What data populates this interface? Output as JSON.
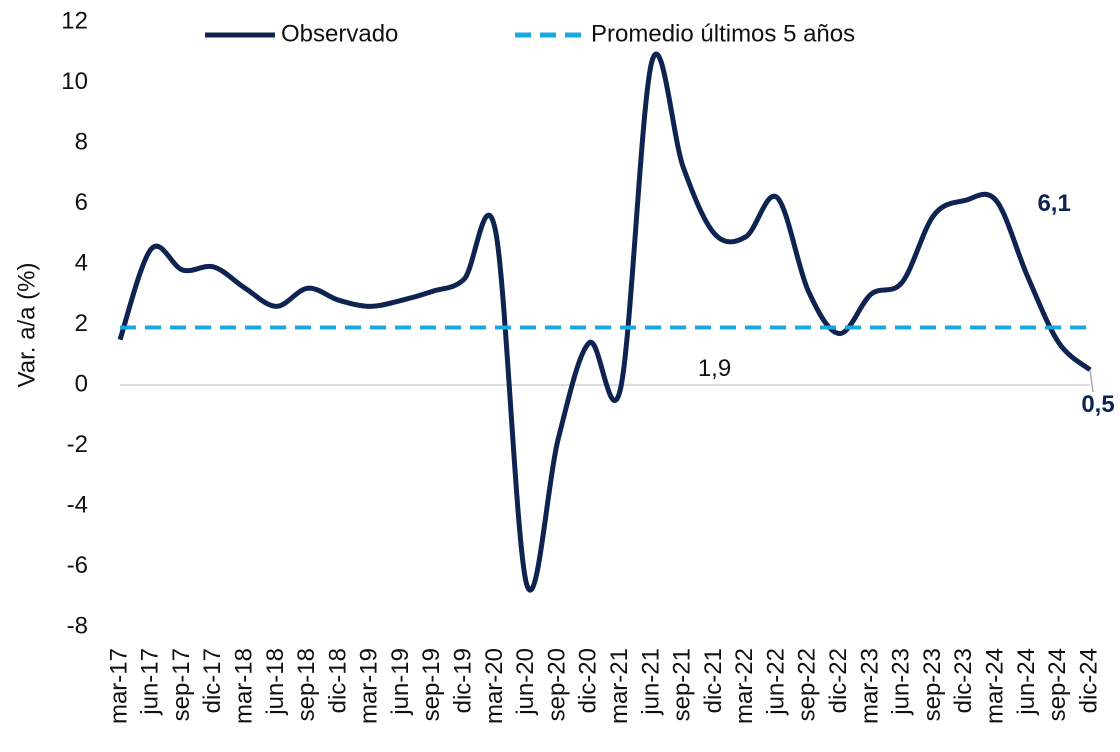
{
  "chart_data": {
    "type": "line",
    "y_label": "Var. a/a (%)",
    "categories": [
      "mar-17",
      "jun-17",
      "sep-17",
      "dic-17",
      "mar-18",
      "jun-18",
      "sep-18",
      "dic-18",
      "mar-19",
      "jun-19",
      "sep-19",
      "dic-19",
      "mar-20",
      "jun-20",
      "sep-20",
      "dic-20",
      "mar-21",
      "jun-21",
      "sep-21",
      "dic-21",
      "mar-22",
      "jun-22",
      "sep-22",
      "dic-22",
      "mar-23",
      "jun-23",
      "sep-23",
      "dic-23",
      "mar-24",
      "jun-24",
      "sep-24",
      "dic-24"
    ],
    "series": [
      {
        "name": "Observado",
        "color": "#0d2451",
        "dashed": false,
        "values": [
          1.5,
          4.5,
          3.8,
          3.9,
          3.2,
          2.6,
          3.2,
          2.8,
          2.6,
          2.8,
          3.1,
          3.5,
          5.1,
          -6.6,
          -1.8,
          1.4,
          -0.1,
          10.7,
          7.2,
          5.0,
          4.9,
          6.2,
          3.1,
          1.7,
          3.0,
          3.4,
          5.6,
          6.1,
          6.1,
          3.6,
          1.4,
          0.5
        ],
        "value_labels": [
          null,
          null,
          null,
          null,
          null,
          null,
          null,
          null,
          null,
          null,
          null,
          null,
          null,
          null,
          null,
          null,
          null,
          null,
          null,
          null,
          null,
          null,
          null,
          null,
          null,
          null,
          null,
          null,
          "6,1",
          null,
          null,
          "0,5"
        ]
      },
      {
        "name": "Promedio últimos 5 años",
        "color": "#1aa8e0",
        "dashed": true,
        "values": [
          1.9,
          1.9,
          1.9,
          1.9,
          1.9,
          1.9,
          1.9,
          1.9,
          1.9,
          1.9,
          1.9,
          1.9,
          1.9,
          1.9,
          1.9,
          1.9,
          1.9,
          1.9,
          1.9,
          1.9,
          1.9,
          1.9,
          1.9,
          1.9,
          1.9,
          1.9,
          1.9,
          1.9,
          1.9,
          1.9,
          1.9,
          1.9
        ],
        "value_labels": [
          null,
          null,
          null,
          null,
          null,
          null,
          null,
          null,
          null,
          null,
          null,
          null,
          null,
          null,
          null,
          null,
          null,
          null,
          null,
          "1,9",
          null,
          null,
          null,
          null,
          null,
          null,
          null,
          null,
          null,
          null,
          null,
          null
        ]
      }
    ],
    "ylim": [
      -8,
      12
    ],
    "yticks": [
      -8,
      -6,
      -4,
      -2,
      0,
      2,
      4,
      6,
      8,
      10,
      12
    ],
    "zero_line": true
  }
}
